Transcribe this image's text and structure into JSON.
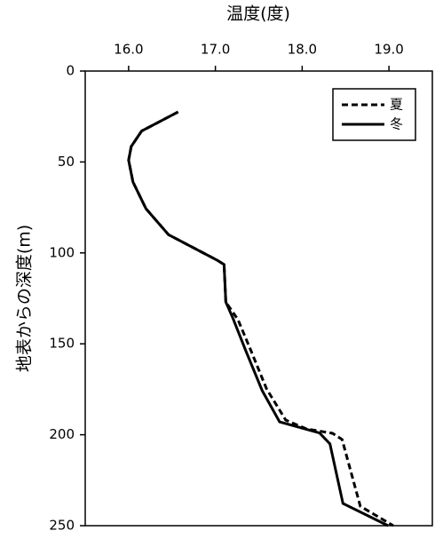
{
  "chart_data": {
    "type": "line",
    "title": "温度(度)",
    "y_label": "地表からの深度(m)",
    "xlim": [
      15.5,
      19.5
    ],
    "xticks": [
      {
        "value": 16,
        "label": "16.0"
      },
      {
        "value": 17,
        "label": "17.0"
      },
      {
        "value": 18,
        "label": "18.0"
      },
      {
        "value": 19,
        "label": "19.0"
      }
    ],
    "ylim": [
      0,
      250
    ],
    "yticks": [
      0,
      50,
      100,
      150,
      200,
      250
    ],
    "y_inverted": true,
    "x_axis_position": "top",
    "legend": "upper right",
    "series": [
      {
        "name": "夏",
        "color": "#000000",
        "dash": true,
        "x": [
          16.57,
          16.15,
          16.03,
          16.0,
          16.05,
          16.2,
          16.46,
          17.02,
          17.1,
          17.12,
          17.26,
          17.41,
          17.59,
          17.81,
          18.05,
          18.35,
          18.46,
          18.67,
          19.05
        ],
        "values": [
          22.5,
          33,
          41.5,
          49,
          61,
          75.7,
          90,
          104,
          106.4,
          127,
          136.7,
          153.8,
          174.8,
          191.9,
          196.8,
          199.2,
          202.6,
          239.3,
          250
        ]
      },
      {
        "name": "冬",
        "color": "#000000",
        "dash": false,
        "x": [
          16.57,
          16.15,
          16.03,
          16.0,
          16.05,
          16.2,
          16.46,
          17.02,
          17.1,
          17.12,
          17.2,
          17.35,
          17.54,
          17.74,
          18.2,
          18.32,
          18.47,
          18.99
        ],
        "values": [
          22.5,
          33,
          41.5,
          49,
          61,
          75.7,
          90,
          104,
          106.4,
          127,
          135.7,
          153.8,
          175.8,
          192.9,
          199,
          205,
          237.8,
          250
        ]
      }
    ]
  }
}
